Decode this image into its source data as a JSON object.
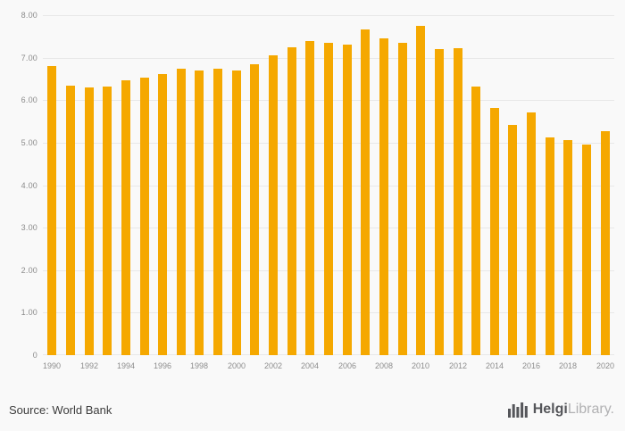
{
  "chart_data": {
    "type": "bar",
    "title": "",
    "categories": [
      1990,
      1991,
      1992,
      1993,
      1994,
      1995,
      1996,
      1997,
      1998,
      1999,
      2000,
      2001,
      2002,
      2003,
      2004,
      2005,
      2006,
      2007,
      2008,
      2009,
      2010,
      2011,
      2012,
      2013,
      2014,
      2015,
      2016,
      2017,
      2018,
      2019,
      2020
    ],
    "values": [
      6.8,
      6.34,
      6.29,
      6.33,
      6.47,
      6.54,
      6.62,
      6.74,
      6.7,
      6.74,
      6.7,
      6.85,
      7.05,
      7.24,
      7.4,
      7.35,
      7.3,
      7.66,
      7.45,
      7.35,
      7.75,
      7.2,
      7.22,
      6.31,
      5.82,
      5.42,
      5.72,
      5.12,
      5.06,
      4.95,
      5.27
    ],
    "xlabel": "",
    "ylabel": "",
    "ylim": [
      0,
      8
    ],
    "ytick_labels": [
      "0",
      "1.00",
      "2.00",
      "3.00",
      "4.00",
      "5.00",
      "6.00",
      "7.00",
      "8.00"
    ],
    "xtick_every": 2,
    "grid": "horizontal",
    "legend": "none"
  },
  "colors": {
    "bar": "#F5A800",
    "grid": "#e8e8e8",
    "tick_text": "#8c8c8c",
    "source_text": "#3c3c3c",
    "logo_dark": "#55565a",
    "logo_light": "#b1b1b3"
  },
  "footer": {
    "source": "Source: World Bank"
  },
  "logo": {
    "brand_bold": "Helgi",
    "brand_light": "Library."
  }
}
